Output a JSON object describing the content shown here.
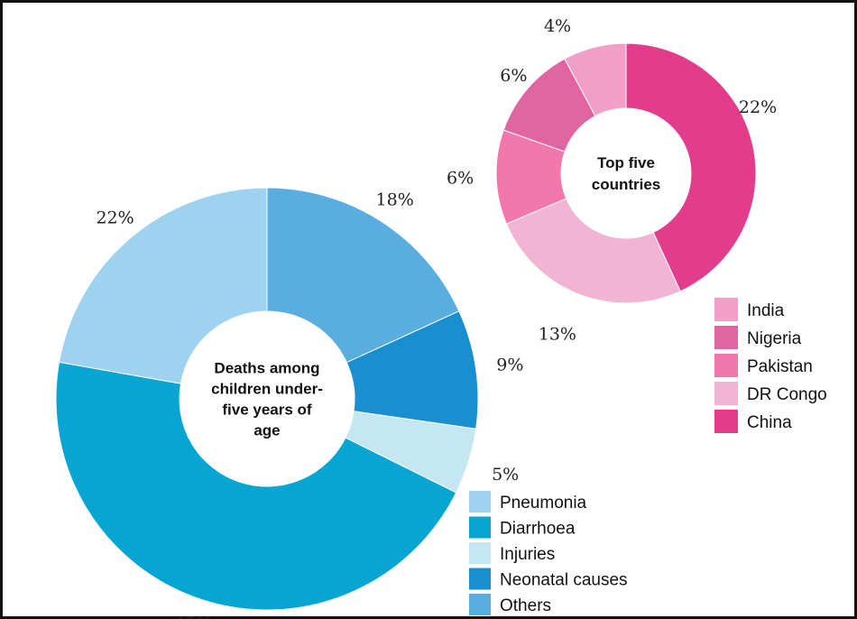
{
  "chart_data": [
    {
      "type": "pie",
      "variant": "donut",
      "center_label_lines": [
        "Deaths among",
        "children under-",
        "five years of",
        "age"
      ],
      "slices": [
        {
          "label": "Others",
          "value": 18,
          "value_label": "18%",
          "color": "#5aaedf"
        },
        {
          "label": "Neonatal causes",
          "value": 9,
          "value_label": "9%",
          "color": "#1a8fcf"
        },
        {
          "label": "Injuries",
          "value": 5,
          "value_label": "5%",
          "color": "#c4e7f3"
        },
        {
          "label": "Diarrhoea",
          "value": 45,
          "value_label": "45%",
          "color": "#07a5d2"
        },
        {
          "label": "Pneumonia",
          "value": 22,
          "value_label": "22%",
          "color": "#9dd3f1"
        }
      ],
      "legend": [
        {
          "label": "Pneumonia",
          "color": "#9dd3f1"
        },
        {
          "label": "Diarrhoea",
          "color": "#07a5d2"
        },
        {
          "label": "Injuries",
          "color": "#c4e7f3"
        },
        {
          "label": "Neonatal causes",
          "color": "#1a8fcf"
        },
        {
          "label": "Others",
          "color": "#5aaedf"
        }
      ],
      "legend_position": "bottom-right"
    },
    {
      "type": "pie",
      "variant": "donut",
      "center_label_lines": [
        "Top five",
        "countries"
      ],
      "slices": [
        {
          "label": "China",
          "value": 22,
          "value_label": "22%",
          "color": "#e33c8d"
        },
        {
          "label": "DR Congo",
          "value": 13,
          "value_label": "13%",
          "color": "#f2b4d3"
        },
        {
          "label": "Pakistan",
          "value": 6,
          "value_label": "6%",
          "color": "#f277ab"
        },
        {
          "label": "Nigeria",
          "value": 6,
          "value_label": "6%",
          "color": "#e065a1"
        },
        {
          "label": "India",
          "value": 4,
          "value_label": "4%",
          "color": "#f29fc7"
        }
      ],
      "legend": [
        {
          "label": "India",
          "color": "#f29fc7"
        },
        {
          "label": "Nigeria",
          "color": "#e065a1"
        },
        {
          "label": "Pakistan",
          "color": "#f277ab"
        },
        {
          "label": "DR Congo",
          "color": "#f2b4d3"
        },
        {
          "label": "China",
          "color": "#e33c8d"
        }
      ],
      "legend_position": "right"
    }
  ]
}
